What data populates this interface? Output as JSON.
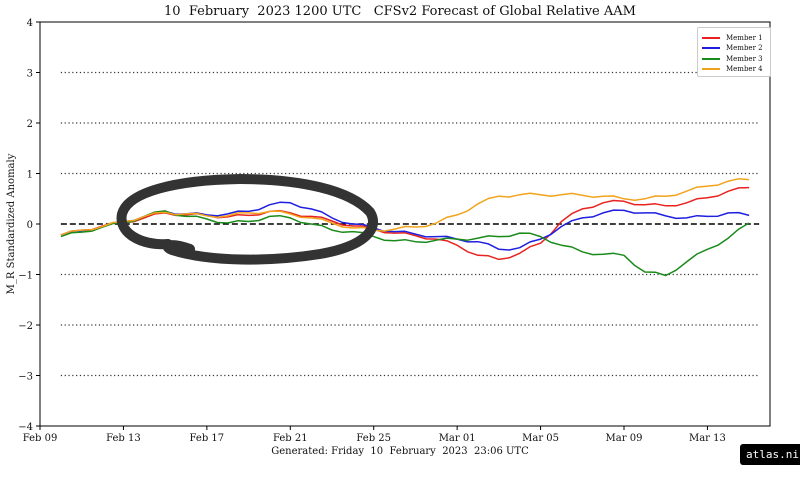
{
  "title": "10  February  2023 1200 UTC   CFSv2 Forecast of Global Relative AAM",
  "footer": "Generated: Friday  10  February  2023  23:06 UTC",
  "watermark": "atlas.niu.edu",
  "colors": {
    "Member 1": "#e8231f",
    "Member 2": "#1f1fe0",
    "Member 3": "#1a8a1a",
    "Member 4": "#f2a31d",
    "annotation": "#333333"
  },
  "chart_data": {
    "type": "line",
    "ylabel": "M_R Standardized Anomaly",
    "ylim": [
      -4,
      4
    ],
    "yticks": [
      4,
      3,
      2,
      1,
      0,
      -1,
      -2,
      -3,
      -4
    ],
    "ytick_labels": [
      "4",
      "3",
      "2",
      "1",
      "0",
      "−1",
      "−2",
      "−3",
      "−4"
    ],
    "xlim": [
      "2023-02-09",
      "2023-03-16"
    ],
    "xticks": [
      "2023-02-09",
      "2023-02-13",
      "2023-02-17",
      "2023-02-21",
      "2023-02-25",
      "2023-03-01",
      "2023-03-05",
      "2023-03-09",
      "2023-03-13"
    ],
    "xtick_labels": [
      "Feb 09",
      "Feb 13",
      "Feb 17",
      "Feb 21",
      "Feb 25",
      "Mar 01",
      "Mar 05",
      "Mar 09",
      "Mar 13"
    ],
    "dotted_gridlines_y": [
      3,
      2,
      1,
      -1,
      -2,
      -3
    ],
    "dashed_reference_y": 0,
    "legend_position": "top-right",
    "series": [
      {
        "name": "Member 1",
        "points": [
          [
            "2023-02-10",
            -0.22
          ],
          [
            "2023-02-11",
            -0.12
          ],
          [
            "2023-02-12",
            -0.04
          ],
          [
            "2023-02-13",
            0.03
          ],
          [
            "2023-02-14",
            0.12
          ],
          [
            "2023-02-15",
            0.22
          ],
          [
            "2023-02-16",
            0.18
          ],
          [
            "2023-02-17",
            0.17
          ],
          [
            "2023-02-18",
            0.14
          ],
          [
            "2023-02-19",
            0.17
          ],
          [
            "2023-02-20",
            0.25
          ],
          [
            "2023-02-21",
            0.22
          ],
          [
            "2023-02-22",
            0.15
          ],
          [
            "2023-02-23",
            0.06
          ],
          [
            "2023-02-24",
            -0.04
          ],
          [
            "2023-02-25",
            -0.1
          ],
          [
            "2023-02-26",
            -0.18
          ],
          [
            "2023-02-27",
            -0.23
          ],
          [
            "2023-02-28",
            -0.3
          ],
          [
            "2023-03-01",
            -0.42
          ],
          [
            "2023-03-02",
            -0.62
          ],
          [
            "2023-03-03",
            -0.7
          ],
          [
            "2023-03-04",
            -0.58
          ],
          [
            "2023-03-05",
            -0.38
          ],
          [
            "2023-03-06",
            0.05
          ],
          [
            "2023-03-07",
            0.3
          ],
          [
            "2023-03-08",
            0.42
          ],
          [
            "2023-03-09",
            0.45
          ],
          [
            "2023-03-10",
            0.38
          ],
          [
            "2023-03-11",
            0.36
          ],
          [
            "2023-03-12",
            0.42
          ],
          [
            "2023-03-13",
            0.52
          ],
          [
            "2023-03-14",
            0.65
          ],
          [
            "2023-03-15",
            0.72
          ]
        ]
      },
      {
        "name": "Member 2",
        "points": [
          [
            "2023-02-10",
            -0.22
          ],
          [
            "2023-02-11",
            -0.13
          ],
          [
            "2023-02-12",
            -0.06
          ],
          [
            "2023-02-13",
            0.05
          ],
          [
            "2023-02-14",
            0.15
          ],
          [
            "2023-02-15",
            0.25
          ],
          [
            "2023-02-16",
            0.2
          ],
          [
            "2023-02-17",
            0.18
          ],
          [
            "2023-02-18",
            0.2
          ],
          [
            "2023-02-19",
            0.25
          ],
          [
            "2023-02-20",
            0.38
          ],
          [
            "2023-02-21",
            0.42
          ],
          [
            "2023-02-22",
            0.3
          ],
          [
            "2023-02-23",
            0.12
          ],
          [
            "2023-02-24",
            0.0
          ],
          [
            "2023-02-25",
            -0.08
          ],
          [
            "2023-02-26",
            -0.15
          ],
          [
            "2023-02-27",
            -0.2
          ],
          [
            "2023-02-28",
            -0.25
          ],
          [
            "2023-03-01",
            -0.3
          ],
          [
            "2023-03-02",
            -0.35
          ],
          [
            "2023-03-03",
            -0.5
          ],
          [
            "2023-03-04",
            -0.47
          ],
          [
            "2023-03-05",
            -0.3
          ],
          [
            "2023-03-06",
            -0.05
          ],
          [
            "2023-03-07",
            0.12
          ],
          [
            "2023-03-08",
            0.22
          ],
          [
            "2023-03-09",
            0.27
          ],
          [
            "2023-03-10",
            0.22
          ],
          [
            "2023-03-11",
            0.16
          ],
          [
            "2023-03-12",
            0.12
          ],
          [
            "2023-03-13",
            0.15
          ],
          [
            "2023-03-14",
            0.22
          ],
          [
            "2023-03-15",
            0.17
          ]
        ]
      },
      {
        "name": "Member 3",
        "points": [
          [
            "2023-02-10",
            -0.25
          ],
          [
            "2023-02-11",
            -0.16
          ],
          [
            "2023-02-12",
            -0.06
          ],
          [
            "2023-02-13",
            0.02
          ],
          [
            "2023-02-14",
            0.15
          ],
          [
            "2023-02-15",
            0.26
          ],
          [
            "2023-02-16",
            0.15
          ],
          [
            "2023-02-17",
            0.1
          ],
          [
            "2023-02-18",
            0.02
          ],
          [
            "2023-02-19",
            0.05
          ],
          [
            "2023-02-20",
            0.15
          ],
          [
            "2023-02-21",
            0.12
          ],
          [
            "2023-02-22",
            0.0
          ],
          [
            "2023-02-23",
            -0.12
          ],
          [
            "2023-02-24",
            -0.15
          ],
          [
            "2023-02-25",
            -0.25
          ],
          [
            "2023-02-26",
            -0.33
          ],
          [
            "2023-02-27",
            -0.35
          ],
          [
            "2023-02-28",
            -0.32
          ],
          [
            "2023-03-01",
            -0.3
          ],
          [
            "2023-03-02",
            -0.28
          ],
          [
            "2023-03-03",
            -0.25
          ],
          [
            "2023-03-04",
            -0.18
          ],
          [
            "2023-03-05",
            -0.25
          ],
          [
            "2023-03-06",
            -0.42
          ],
          [
            "2023-03-07",
            -0.55
          ],
          [
            "2023-03-08",
            -0.6
          ],
          [
            "2023-03-09",
            -0.62
          ],
          [
            "2023-03-10",
            -0.95
          ],
          [
            "2023-03-11",
            -1.02
          ],
          [
            "2023-03-12",
            -0.75
          ],
          [
            "2023-03-13",
            -0.5
          ],
          [
            "2023-03-14",
            -0.28
          ],
          [
            "2023-03-15",
            0.02
          ]
        ]
      },
      {
        "name": "Member 4",
        "points": [
          [
            "2023-02-10",
            -0.22
          ],
          [
            "2023-02-11",
            -0.12
          ],
          [
            "2023-02-12",
            -0.05
          ],
          [
            "2023-02-13",
            0.05
          ],
          [
            "2023-02-14",
            0.15
          ],
          [
            "2023-02-15",
            0.23
          ],
          [
            "2023-02-16",
            0.2
          ],
          [
            "2023-02-17",
            0.16
          ],
          [
            "2023-02-18",
            0.16
          ],
          [
            "2023-02-19",
            0.22
          ],
          [
            "2023-02-20",
            0.25
          ],
          [
            "2023-02-21",
            0.2
          ],
          [
            "2023-02-22",
            0.12
          ],
          [
            "2023-02-23",
            0.02
          ],
          [
            "2023-02-24",
            -0.08
          ],
          [
            "2023-02-25",
            -0.12
          ],
          [
            "2023-02-26",
            -0.1
          ],
          [
            "2023-02-27",
            -0.06
          ],
          [
            "2023-02-28",
            0.02
          ],
          [
            "2023-03-01",
            0.18
          ],
          [
            "2023-03-02",
            0.4
          ],
          [
            "2023-03-03",
            0.55
          ],
          [
            "2023-03-04",
            0.58
          ],
          [
            "2023-03-05",
            0.58
          ],
          [
            "2023-03-06",
            0.58
          ],
          [
            "2023-03-07",
            0.57
          ],
          [
            "2023-03-08",
            0.55
          ],
          [
            "2023-03-09",
            0.5
          ],
          [
            "2023-03-10",
            0.5
          ],
          [
            "2023-03-11",
            0.55
          ],
          [
            "2023-03-12",
            0.65
          ],
          [
            "2023-03-13",
            0.75
          ],
          [
            "2023-03-14",
            0.85
          ],
          [
            "2023-03-15",
            0.88
          ]
        ]
      }
    ]
  }
}
